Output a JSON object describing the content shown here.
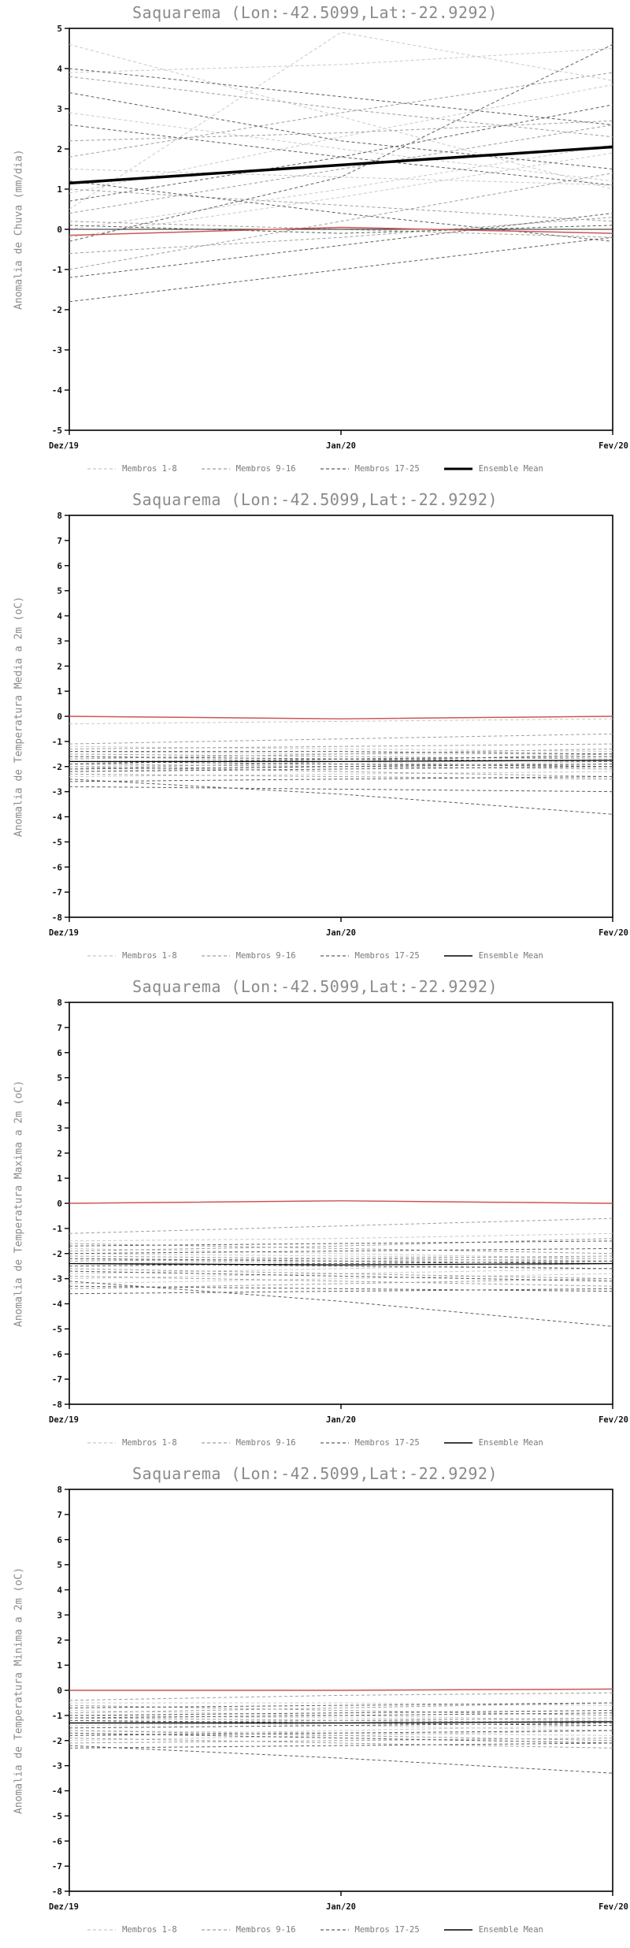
{
  "colors": {
    "members_1_8": "#c9c9c9",
    "members_9_16": "#9f9f9f",
    "members_17_25": "#5f5f5f",
    "ensemble_mean": "#000000",
    "reference": "#cc5555",
    "zero_line": "#222222",
    "title": "#8a8a8a"
  },
  "chart_data": [
    {
      "type": "line",
      "title": "Saquarema (Lon:-42.5099,Lat:-22.9292)",
      "ylabel": "Anomalia de Chuva (mm/dia)",
      "ylim": [
        -5,
        5
      ],
      "ytick_step": 1,
      "x": [
        0,
        1,
        2
      ],
      "x_labels": [
        "Dez/19",
        "Jan/20",
        "Fev/20"
      ],
      "grid": false,
      "legend_position": "bottom",
      "mean_width": 3.5,
      "members_1_8": [
        [
          4.6,
          2.8,
          1.0
        ],
        [
          0.9,
          2.3,
          3.6
        ],
        [
          0.5,
          4.9,
          3.7
        ],
        [
          3.9,
          4.1,
          4.5
        ],
        [
          1.5,
          1.3,
          1.1
        ],
        [
          -0.2,
          0.8,
          1.9
        ],
        [
          2.9,
          2.0,
          1.2
        ],
        [
          0.0,
          1.0,
          2.1
        ]
      ],
      "members_9_16": [
        [
          3.8,
          3.0,
          2.3
        ],
        [
          -1.0,
          0.2,
          1.4
        ],
        [
          2.2,
          2.4,
          2.7
        ],
        [
          0.4,
          1.5,
          2.6
        ],
        [
          1.0,
          0.6,
          0.2
        ],
        [
          -0.6,
          -0.2,
          0.3
        ],
        [
          1.8,
          2.9,
          3.9
        ],
        [
          0.2,
          0.0,
          -0.2
        ]
      ],
      "members_17_25": [
        [
          4.0,
          3.3,
          2.6
        ],
        [
          -1.8,
          -1.0,
          -0.2
        ],
        [
          2.6,
          1.8,
          1.1
        ],
        [
          0.7,
          1.8,
          3.1
        ],
        [
          -1.2,
          -0.4,
          0.4
        ],
        [
          1.2,
          0.4,
          -0.3
        ],
        [
          3.4,
          2.2,
          1.5
        ],
        [
          0.1,
          -0.1,
          0.1
        ],
        [
          -0.3,
          1.3,
          4.6
        ]
      ],
      "zero_line": [
        0,
        0,
        0
      ],
      "reference_line": [
        -0.15,
        0.05,
        -0.1
      ],
      "ensemble_mean": [
        1.15,
        1.6,
        2.05
      ],
      "legend": [
        {
          "label": "Membros 1-8",
          "color": "#c9c9c9",
          "dashed": true,
          "width": 1.2
        },
        {
          "label": "Membros 9-16",
          "color": "#9f9f9f",
          "dashed": true,
          "width": 1.2
        },
        {
          "label": "Membros 17-25",
          "color": "#5f5f5f",
          "dashed": true,
          "width": 1.2
        },
        {
          "label": "Ensemble Mean",
          "color": "#000000",
          "dashed": false,
          "width": 3
        }
      ]
    },
    {
      "type": "line",
      "title": "Saquarema (Lon:-42.5099,Lat:-22.9292)",
      "ylabel": "Anomalia de Temperatura Media a 2m (oC)",
      "ylim": [
        -8,
        8
      ],
      "ytick_step": 1,
      "x": [
        0,
        1,
        2
      ],
      "x_labels": [
        "Dez/19",
        "Jan/20",
        "Fev/20"
      ],
      "grid": false,
      "legend_position": "bottom",
      "mean_width": 1.3,
      "members_1_8": [
        [
          -1.4,
          -1.5,
          -1.5
        ],
        [
          -1.8,
          -1.7,
          -1.6
        ],
        [
          -2.0,
          -1.9,
          -1.9
        ],
        [
          -1.6,
          -1.8,
          -2.0
        ],
        [
          -2.2,
          -2.0,
          -1.8
        ],
        [
          -1.2,
          -1.3,
          -1.4
        ],
        [
          -2.4,
          -2.3,
          -2.2
        ],
        [
          -0.3,
          -0.2,
          -0.1
        ]
      ],
      "members_9_16": [
        [
          -1.5,
          -1.6,
          -1.7
        ],
        [
          -1.9,
          -2.0,
          -2.1
        ],
        [
          -2.1,
          -1.8,
          -1.5
        ],
        [
          -1.7,
          -1.5,
          -1.3
        ],
        [
          -2.3,
          -2.4,
          -2.5
        ],
        [
          -1.3,
          -1.2,
          -1.1
        ],
        [
          -2.0,
          -2.2,
          -2.4
        ],
        [
          -1.1,
          -0.9,
          -0.7
        ]
      ],
      "members_17_25": [
        [
          -1.6,
          -1.7,
          -1.8
        ],
        [
          -2.5,
          -3.1,
          -3.9
        ],
        [
          -1.8,
          -1.9,
          -2.0
        ],
        [
          -2.2,
          -2.1,
          -2.0
        ],
        [
          -1.4,
          -1.4,
          -1.5
        ],
        [
          -2.6,
          -2.5,
          -2.4
        ],
        [
          -1.9,
          -1.7,
          -1.6
        ],
        [
          -2.8,
          -2.9,
          -3.0
        ],
        [
          -2.1,
          -2.0,
          -1.9
        ]
      ],
      "reference_line": [
        0.0,
        -0.1,
        0.0
      ],
      "ensemble_mean": [
        -1.8,
        -1.8,
        -1.75
      ],
      "legend": [
        {
          "label": "Membros 1-8",
          "color": "#c9c9c9",
          "dashed": true,
          "width": 1.2
        },
        {
          "label": "Membros 9-16",
          "color": "#9f9f9f",
          "dashed": true,
          "width": 1.2
        },
        {
          "label": "Membros 17-25",
          "color": "#5f5f5f",
          "dashed": true,
          "width": 1.2
        },
        {
          "label": "Ensemble Mean",
          "color": "#000000",
          "dashed": false,
          "width": 1.5
        }
      ]
    },
    {
      "type": "line",
      "title": "Saquarema (Lon:-42.5099,Lat:-22.9292)",
      "ylabel": "Anomalia de Temperatura Maxima a 2m (oC)",
      "ylim": [
        -8,
        8
      ],
      "ytick_step": 1,
      "x": [
        0,
        1,
        2
      ],
      "x_labels": [
        "Dez/19",
        "Jan/20",
        "Fev/20"
      ],
      "grid": false,
      "legend_position": "bottom",
      "mean_width": 1.3,
      "members_1_8": [
        [
          -2.0,
          -2.1,
          -2.2
        ],
        [
          -2.4,
          -2.3,
          -2.2
        ],
        [
          -2.8,
          -2.6,
          -2.4
        ],
        [
          -1.8,
          -2.0,
          -2.2
        ],
        [
          -3.0,
          -2.8,
          -2.6
        ],
        [
          -1.5,
          -1.4,
          -1.2
        ],
        [
          -3.2,
          -3.0,
          -2.8
        ],
        [
          -2.2,
          -2.4,
          -2.6
        ]
      ],
      "members_9_16": [
        [
          -2.1,
          -2.2,
          -2.3
        ],
        [
          -2.6,
          -2.8,
          -3.0
        ],
        [
          -1.9,
          -1.7,
          -1.4
        ],
        [
          -2.9,
          -3.1,
          -3.3
        ],
        [
          -2.3,
          -2.2,
          -2.1
        ],
        [
          -1.6,
          -1.8,
          -2.0
        ],
        [
          -3.4,
          -3.2,
          -3.0
        ],
        [
          -1.2,
          -0.9,
          -0.6
        ]
      ],
      "members_17_25": [
        [
          -2.2,
          -2.3,
          -2.4
        ],
        [
          -3.1,
          -3.9,
          -4.9
        ],
        [
          -2.5,
          -2.4,
          -2.3
        ],
        [
          -1.7,
          -1.6,
          -1.5
        ],
        [
          -2.7,
          -2.9,
          -3.1
        ],
        [
          -3.3,
          -3.4,
          -3.5
        ],
        [
          -2.0,
          -1.9,
          -1.8
        ],
        [
          -3.6,
          -3.5,
          -3.4
        ],
        [
          -2.4,
          -2.5,
          -2.6
        ]
      ],
      "reference_line": [
        0.0,
        0.1,
        0.0
      ],
      "ensemble_mean": [
        -2.4,
        -2.45,
        -2.4
      ],
      "legend": [
        {
          "label": "Membros 1-8",
          "color": "#c9c9c9",
          "dashed": true,
          "width": 1.2
        },
        {
          "label": "Membros 9-16",
          "color": "#9f9f9f",
          "dashed": true,
          "width": 1.2
        },
        {
          "label": "Membros 17-25",
          "color": "#5f5f5f",
          "dashed": true,
          "width": 1.2
        },
        {
          "label": "Ensemble Mean",
          "color": "#000000",
          "dashed": false,
          "width": 1.5
        }
      ]
    },
    {
      "type": "line",
      "title": "Saquarema (Lon:-42.5099,Lat:-22.9292)",
      "ylabel": "Anomalia de Temperatura Minima a 2m (oC)",
      "ylim": [
        -8,
        8
      ],
      "ytick_step": 1,
      "x": [
        0,
        1,
        2
      ],
      "x_labels": [
        "Dez/19",
        "Jan/20",
        "Fev/20"
      ],
      "grid": false,
      "legend_position": "bottom",
      "mean_width": 1.3,
      "members_1_8": [
        [
          -1.0,
          -1.1,
          -1.2
        ],
        [
          -1.4,
          -1.3,
          -1.2
        ],
        [
          -1.8,
          -1.6,
          -1.4
        ],
        [
          -0.8,
          -1.0,
          -1.2
        ],
        [
          -2.0,
          -1.8,
          -1.6
        ],
        [
          -0.5,
          -0.5,
          -0.6
        ],
        [
          -1.6,
          -1.7,
          -1.8
        ],
        [
          -1.2,
          -1.4,
          -1.6
        ]
      ],
      "members_9_16": [
        [
          -1.1,
          -1.2,
          -1.3
        ],
        [
          -1.6,
          -1.8,
          -2.0
        ],
        [
          -0.9,
          -0.7,
          -0.5
        ],
        [
          -1.9,
          -2.1,
          -2.3
        ],
        [
          -1.3,
          -1.2,
          -1.1
        ],
        [
          -0.6,
          -0.8,
          -1.0
        ],
        [
          -2.1,
          -2.0,
          -1.9
        ],
        [
          -0.4,
          -0.2,
          -0.1
        ]
      ],
      "members_17_25": [
        [
          -1.2,
          -1.3,
          -1.4
        ],
        [
          -2.2,
          -2.7,
          -3.3
        ],
        [
          -1.5,
          -1.4,
          -1.3
        ],
        [
          -0.7,
          -0.6,
          -0.5
        ],
        [
          -1.7,
          -1.9,
          -2.1
        ],
        [
          -2.3,
          -2.2,
          -2.1
        ],
        [
          -1.0,
          -0.9,
          -0.8
        ],
        [
          -1.8,
          -1.7,
          -1.6
        ],
        [
          -1.1,
          -1.0,
          -0.9
        ]
      ],
      "reference_line": [
        0.0,
        0.0,
        0.05
      ],
      "ensemble_mean": [
        -1.3,
        -1.3,
        -1.25
      ],
      "legend": [
        {
          "label": "Membros 1-8",
          "color": "#c9c9c9",
          "dashed": true,
          "width": 1.2
        },
        {
          "label": "Membros 9-16",
          "color": "#9f9f9f",
          "dashed": true,
          "width": 1.2
        },
        {
          "label": "Membros 17-25",
          "color": "#5f5f5f",
          "dashed": true,
          "width": 1.2
        },
        {
          "label": "Ensemble Mean",
          "color": "#000000",
          "dashed": false,
          "width": 1.5
        }
      ]
    }
  ]
}
